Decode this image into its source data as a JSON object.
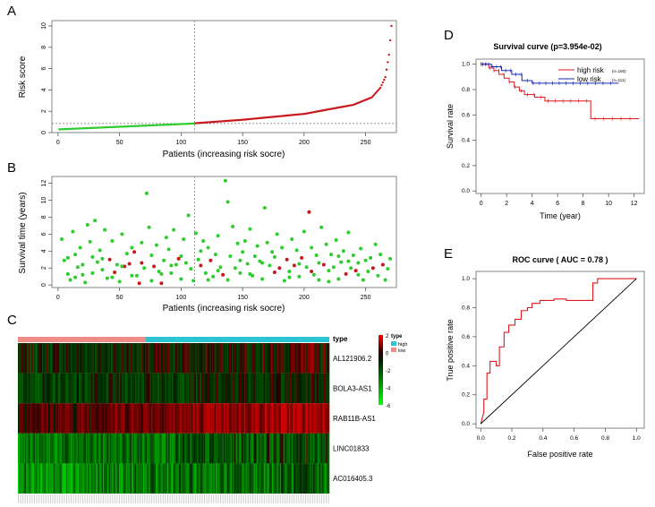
{
  "chart_data": [
    {
      "panel": "A",
      "type": "scatter",
      "xlabel": "Patients (increasing risk socre)",
      "ylabel": "Risk score",
      "xticks": [
        0,
        50,
        100,
        150,
        200,
        250
      ],
      "yticks": [
        0,
        2,
        4,
        6,
        8,
        10
      ],
      "xlim": [
        -5,
        275
      ],
      "ylim": [
        0,
        10.5
      ],
      "cutoff_index": 111,
      "cutoff_score": 0.85,
      "n": 271,
      "series": [
        {
          "name": "low",
          "color": "#2ecc2e",
          "from": 1,
          "to": 111,
          "start": 0.3,
          "end": 0.85
        },
        {
          "name": "high",
          "color": "#c8191e",
          "from": 112,
          "to": 271,
          "control": [
            [
              112,
              0.88
            ],
            [
              150,
              1.2
            ],
            [
              200,
              1.75
            ],
            [
              240,
              2.6
            ],
            [
              255,
              3.3
            ],
            [
              262,
              4.2
            ],
            [
              266,
              5.2
            ],
            [
              269,
              7.3
            ],
            [
              271,
              10.0
            ]
          ]
        }
      ]
    },
    {
      "panel": "B",
      "type": "scatter",
      "xlabel": "Patients (increasing risk socre)",
      "ylabel": "Survival time (years)",
      "xticks": [
        0,
        50,
        100,
        150,
        200,
        250
      ],
      "yticks": [
        0,
        2,
        4,
        6,
        8,
        10,
        12
      ],
      "xlim": [
        -5,
        275
      ],
      "ylim": [
        -0.3,
        12.8
      ],
      "cutoff_index": 111,
      "alive_color": "#2ecc2e",
      "dead_color": "#c8191e",
      "points": [
        [
          3,
          5.4,
          0
        ],
        [
          5,
          2.9,
          0
        ],
        [
          8,
          1.3,
          0
        ],
        [
          10,
          0.6,
          0
        ],
        [
          12,
          6.3,
          0
        ],
        [
          14,
          3.6,
          0
        ],
        [
          16,
          2.1,
          0
        ],
        [
          18,
          4.4,
          0
        ],
        [
          20,
          1.2,
          0
        ],
        [
          22,
          0.3,
          0
        ],
        [
          24,
          7.1,
          0
        ],
        [
          26,
          5.1,
          0
        ],
        [
          28,
          3.3,
          0
        ],
        [
          30,
          7.6,
          0
        ],
        [
          32,
          2.7,
          0
        ],
        [
          34,
          4.1,
          0
        ],
        [
          36,
          1.8,
          0
        ],
        [
          38,
          6.5,
          0
        ],
        [
          40,
          0.8,
          0
        ],
        [
          42,
          3.0,
          1
        ],
        [
          44,
          5.2,
          0
        ],
        [
          46,
          1.5,
          1
        ],
        [
          48,
          2.4,
          0
        ],
        [
          50,
          0.4,
          0
        ],
        [
          52,
          6.0,
          0
        ],
        [
          54,
          2.2,
          1
        ],
        [
          56,
          3.7,
          0
        ],
        [
          58,
          2.5,
          1
        ],
        [
          60,
          4.4,
          0
        ],
        [
          62,
          3.9,
          1
        ],
        [
          64,
          1.1,
          0
        ],
        [
          66,
          0.2,
          1
        ],
        [
          68,
          5.0,
          0
        ],
        [
          70,
          2.0,
          0
        ],
        [
          72,
          10.8,
          0
        ],
        [
          74,
          6.8,
          0
        ],
        [
          76,
          3.5,
          0
        ],
        [
          78,
          2.2,
          1
        ],
        [
          80,
          4.7,
          0
        ],
        [
          82,
          1.6,
          0
        ],
        [
          84,
          0.2,
          1
        ],
        [
          86,
          2.9,
          0
        ],
        [
          88,
          5.6,
          0
        ],
        [
          90,
          4.2,
          0
        ],
        [
          92,
          1.4,
          0
        ],
        [
          94,
          6.5,
          0
        ],
        [
          96,
          2.4,
          0
        ],
        [
          98,
          3.1,
          1
        ],
        [
          100,
          0.7,
          0
        ],
        [
          102,
          5.4,
          0
        ],
        [
          104,
          2.6,
          0
        ],
        [
          106,
          8.2,
          0
        ],
        [
          108,
          1.9,
          0
        ],
        [
          110,
          0.5,
          0
        ],
        [
          112,
          6.1,
          0
        ],
        [
          114,
          3.0,
          0
        ],
        [
          116,
          2.3,
          1
        ],
        [
          118,
          5.2,
          0
        ],
        [
          120,
          1.4,
          0
        ],
        [
          122,
          4.4,
          0
        ],
        [
          124,
          2.9,
          1
        ],
        [
          126,
          1.0,
          0
        ],
        [
          128,
          3.6,
          0
        ],
        [
          130,
          5.8,
          0
        ],
        [
          132,
          2.1,
          0
        ],
        [
          134,
          1.2,
          1
        ],
        [
          136,
          12.3,
          0
        ],
        [
          138,
          9.8,
          0
        ],
        [
          140,
          3.4,
          0
        ],
        [
          142,
          6.9,
          0
        ],
        [
          144,
          2.0,
          0
        ],
        [
          146,
          4.9,
          0
        ],
        [
          148,
          1.4,
          0
        ],
        [
          150,
          3.9,
          0
        ],
        [
          152,
          5.2,
          0
        ],
        [
          154,
          2.5,
          0
        ],
        [
          156,
          6.6,
          0
        ],
        [
          158,
          1.1,
          0
        ],
        [
          160,
          3.4,
          0
        ],
        [
          162,
          4.6,
          0
        ],
        [
          164,
          2.8,
          0
        ],
        [
          166,
          0.7,
          0
        ],
        [
          168,
          9.1,
          0
        ],
        [
          170,
          5.0,
          0
        ],
        [
          172,
          2.3,
          0
        ],
        [
          174,
          3.9,
          0
        ],
        [
          176,
          1.5,
          1
        ],
        [
          178,
          6.0,
          0
        ],
        [
          180,
          2.0,
          1
        ],
        [
          182,
          4.4,
          0
        ],
        [
          184,
          0.5,
          0
        ],
        [
          186,
          3.0,
          1
        ],
        [
          188,
          1.6,
          0
        ],
        [
          190,
          5.4,
          0
        ],
        [
          192,
          2.3,
          1
        ],
        [
          194,
          4.1,
          0
        ],
        [
          196,
          1.0,
          0
        ],
        [
          198,
          3.2,
          1
        ],
        [
          200,
          6.3,
          0
        ],
        [
          202,
          2.1,
          0
        ],
        [
          204,
          8.6,
          1
        ],
        [
          206,
          4.4,
          0
        ],
        [
          208,
          1.2,
          0
        ],
        [
          210,
          3.5,
          0
        ],
        [
          212,
          0.6,
          0
        ],
        [
          214,
          6.8,
          0
        ],
        [
          216,
          2.4,
          1
        ],
        [
          218,
          4.8,
          0
        ],
        [
          220,
          1.7,
          0
        ],
        [
          222,
          3.6,
          0
        ],
        [
          224,
          2.1,
          0
        ],
        [
          226,
          5.3,
          0
        ],
        [
          228,
          0.7,
          0
        ],
        [
          230,
          2.7,
          0
        ],
        [
          232,
          4.0,
          0
        ],
        [
          234,
          1.3,
          1
        ],
        [
          236,
          6.2,
          0
        ],
        [
          238,
          2.0,
          0
        ],
        [
          240,
          3.5,
          0
        ],
        [
          242,
          1.7,
          1
        ],
        [
          244,
          2.6,
          0
        ],
        [
          246,
          4.3,
          0
        ],
        [
          248,
          0.6,
          0
        ],
        [
          250,
          2.9,
          0
        ],
        [
          252,
          1.6,
          0
        ],
        [
          254,
          3.2,
          0
        ],
        [
          256,
          2.0,
          1
        ],
        [
          258,
          4.8,
          0
        ],
        [
          260,
          1.1,
          0
        ],
        [
          262,
          3.6,
          0
        ],
        [
          264,
          2.4,
          1
        ],
        [
          266,
          0.6,
          0
        ],
        [
          268,
          1.9,
          0
        ],
        [
          270,
          3.1,
          0
        ],
        [
          244,
          1.2,
          0
        ],
        [
          236,
          2.8,
          0
        ],
        [
          228,
          3.4,
          0
        ],
        [
          220,
          0.4,
          0
        ],
        [
          212,
          2.6,
          0
        ],
        [
          206,
          1.6,
          1
        ],
        [
          196,
          2.5,
          0
        ],
        [
          188,
          0.9,
          0
        ],
        [
          176,
          3.3,
          0
        ],
        [
          166,
          2.6,
          0
        ],
        [
          156,
          1.3,
          0
        ],
        [
          148,
          2.9,
          0
        ],
        [
          138,
          0.6,
          0
        ],
        [
          130,
          1.7,
          0
        ],
        [
          122,
          0.6,
          0
        ],
        [
          116,
          4.0,
          0
        ],
        [
          100,
          3.4,
          0
        ],
        [
          92,
          2.3,
          0
        ],
        [
          84,
          1.3,
          0
        ],
        [
          76,
          0.5,
          0
        ],
        [
          68,
          2.6,
          1
        ],
        [
          60,
          1.1,
          0
        ],
        [
          52,
          2.2,
          0
        ],
        [
          44,
          0.9,
          0
        ],
        [
          36,
          3.1,
          0
        ],
        [
          28,
          1.4,
          0
        ],
        [
          20,
          2.4,
          0
        ],
        [
          14,
          0.9,
          0
        ],
        [
          8,
          3.2,
          0
        ]
      ]
    },
    {
      "panel": "C",
      "type": "heatmap",
      "rows": [
        "AL121906.2",
        "BOLA3-AS1",
        "RAB11B-AS1",
        "LINC01833",
        "AC016405.3"
      ],
      "n_cols": 271,
      "annotation_low_cols": 111,
      "legend_title": "type",
      "legend_items": [
        {
          "label": "high",
          "color": "#2bc4d4"
        },
        {
          "label": "low",
          "color": "#f08c88"
        }
      ],
      "color_scale_ticks": [
        "2",
        "0",
        "-2",
        "-4",
        "-6"
      ],
      "row_means": [
        -0.2,
        -0.6,
        0.8,
        -1.8,
        -2.4
      ],
      "row_spread": [
        1.1,
        1.0,
        0.6,
        1.7,
        1.8
      ]
    },
    {
      "panel": "D",
      "type": "line",
      "title": "Survival curve (p=3.954e-02)",
      "xlabel": "Time (year)",
      "ylabel": "Survival rate",
      "xticks": [
        0,
        2,
        4,
        6,
        8,
        10,
        12
      ],
      "yticks": [
        "0.0",
        "0.2",
        "0.4",
        "0.6",
        "0.8",
        "1.0"
      ],
      "xlim": [
        -0.4,
        12.8
      ],
      "ylim": [
        -0.02,
        1.04
      ],
      "legend": [
        {
          "label": "high risk",
          "sub": "(n=160)",
          "color": "#e0191e"
        },
        {
          "label": "low risk",
          "sub": "(n=111)",
          "color": "#1a2bb0"
        }
      ],
      "series": [
        {
          "name": "high risk",
          "color": "#e0191e",
          "x": [
            0,
            0.6,
            1.0,
            1.4,
            1.8,
            2.2,
            2.6,
            3.0,
            3.4,
            4.2,
            5.0,
            8.6,
            12.4
          ],
          "y": [
            1.0,
            0.97,
            0.95,
            0.92,
            0.89,
            0.86,
            0.82,
            0.79,
            0.76,
            0.74,
            0.71,
            0.57,
            0.57
          ]
        },
        {
          "name": "low risk",
          "color": "#1a2bb0",
          "x": [
            0,
            0.8,
            1.6,
            2.4,
            3.2,
            4.0,
            10.8
          ],
          "y": [
            1.0,
            0.98,
            0.95,
            0.92,
            0.87,
            0.85,
            0.85
          ]
        }
      ]
    },
    {
      "panel": "E",
      "type": "line",
      "title": "ROC curve ( AUC =  0.78 )",
      "xlabel": "False positive rate",
      "ylabel": "True positive rate",
      "xticks": [
        "0.0",
        "0.2",
        "0.4",
        "0.6",
        "0.8",
        "1.0"
      ],
      "yticks": [
        "0.0",
        "0.2",
        "0.4",
        "0.6",
        "0.8",
        "1.0"
      ],
      "xlim": [
        -0.03,
        1.05
      ],
      "ylim": [
        -0.03,
        1.05
      ],
      "series": [
        {
          "name": "roc",
          "color": "#e0191e",
          "points": [
            [
              0,
              0
            ],
            [
              0.02,
              0.08
            ],
            [
              0.02,
              0.17
            ],
            [
              0.04,
              0.17
            ],
            [
              0.04,
              0.35
            ],
            [
              0.06,
              0.35
            ],
            [
              0.06,
              0.43
            ],
            [
              0.1,
              0.43
            ],
            [
              0.1,
              0.4
            ],
            [
              0.12,
              0.4
            ],
            [
              0.12,
              0.53
            ],
            [
              0.15,
              0.53
            ],
            [
              0.15,
              0.63
            ],
            [
              0.18,
              0.63
            ],
            [
              0.18,
              0.68
            ],
            [
              0.22,
              0.68
            ],
            [
              0.22,
              0.72
            ],
            [
              0.26,
              0.72
            ],
            [
              0.26,
              0.78
            ],
            [
              0.3,
              0.78
            ],
            [
              0.3,
              0.8
            ],
            [
              0.33,
              0.8
            ],
            [
              0.33,
              0.83
            ],
            [
              0.38,
              0.83
            ],
            [
              0.38,
              0.85
            ],
            [
              0.47,
              0.85
            ],
            [
              0.47,
              0.86
            ],
            [
              0.55,
              0.86
            ],
            [
              0.55,
              0.85
            ],
            [
              0.72,
              0.85
            ],
            [
              0.72,
              0.97
            ],
            [
              0.75,
              0.97
            ],
            [
              0.75,
              1.0
            ],
            [
              1.0,
              1.0
            ]
          ]
        },
        {
          "name": "diagonal",
          "color": "#000000",
          "points": [
            [
              0,
              0
            ],
            [
              1,
              1
            ]
          ]
        }
      ]
    }
  ],
  "panels": {
    "a": "A",
    "b": "B",
    "c": "C",
    "d": "D",
    "e": "E"
  }
}
